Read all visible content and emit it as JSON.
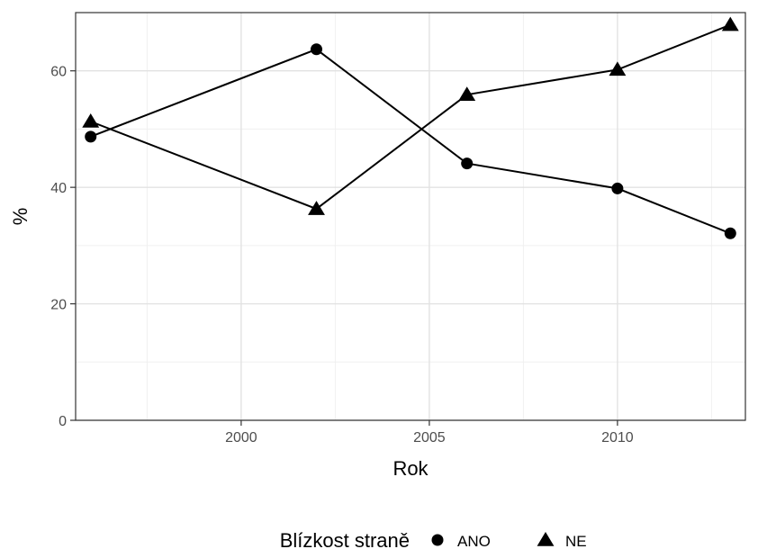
{
  "chart_data": {
    "type": "line",
    "title": "",
    "xlabel": "Rok",
    "ylabel": "%",
    "xlim": [
      1995.6,
      2013.4
    ],
    "ylim": [
      0,
      70
    ],
    "x_ticks": [
      2000,
      2005,
      2010
    ],
    "y_ticks": [
      0,
      20,
      40,
      60
    ],
    "x_tick_labels": [
      "2000",
      "2005",
      "2010"
    ],
    "y_tick_labels": [
      "0",
      "20",
      "40",
      "60"
    ],
    "grid": true,
    "legend": {
      "position": "bottom",
      "title": "Blízkost straně"
    },
    "series": [
      {
        "name": "ANO",
        "marker": "circle",
        "color": "#000000",
        "x": [
          1996,
          2002,
          2006,
          2010,
          2013
        ],
        "y": [
          48.7,
          63.7,
          44.1,
          39.8,
          32.1
        ]
      },
      {
        "name": "NE",
        "marker": "triangle",
        "color": "#000000",
        "x": [
          1996,
          2002,
          2006,
          2010,
          2013
        ],
        "y": [
          51.3,
          36.3,
          55.9,
          60.2,
          67.9
        ]
      }
    ]
  }
}
